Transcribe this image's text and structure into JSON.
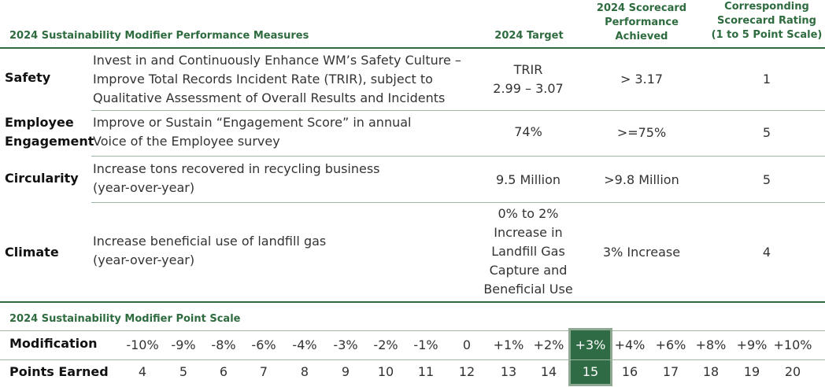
{
  "headers": {
    "measures": "2024 Sustainability Modifier Performance Measures",
    "target": "2024 Target",
    "performance": "2024 Scorecard Performance Achieved",
    "performance_lines": [
      "2024 Scorecard",
      "Performance",
      "Achieved"
    ],
    "rating": "Corresponding Scorecard Rating (1 to 5 Point Scale)",
    "rating_lines": [
      "Corresponding",
      "Scorecard Rating",
      "(1 to 5 Point Scale)"
    ]
  },
  "measures": [
    {
      "category_lines": [
        "Safety"
      ],
      "description_lines": [
        "Invest in and Continuously Enhance WM’s Safety Culture –",
        "Improve Total Records Incident Rate (TRIR), subject to",
        "Qualitative Assessment of Overall Results and Incidents"
      ],
      "target_lines": [
        "TRIR",
        "2.99 – 3.07"
      ],
      "performance": "> 3.17",
      "rating": "1"
    },
    {
      "category_lines": [
        "Employee",
        "Engagement"
      ],
      "description_lines": [
        "Improve or Sustain “Engagement Score” in annual",
        "Voice of the Employee survey"
      ],
      "target_lines": [
        "74%"
      ],
      "performance": ">=75%",
      "rating": "5"
    },
    {
      "category_lines": [
        "Circularity"
      ],
      "description_lines": [
        "Increase tons recovered in recycling business",
        "(year-over-year)"
      ],
      "target_lines": [
        "9.5 Million"
      ],
      "performance": ">9.8 Million",
      "rating": "5"
    },
    {
      "category_lines": [
        "Climate"
      ],
      "description_lines": [
        "Increase beneficial use of landfill gas",
        "(year-over-year)"
      ],
      "target_lines": [
        "0% to 2%",
        "Increase in",
        "Landfill Gas",
        "Capture and",
        "Beneficial Use"
      ],
      "performance": "3% Increase",
      "rating": "4"
    }
  ],
  "point_scale": {
    "title": "2024 Sustainability Modifier Point Scale",
    "modification_label": "Modification",
    "points_label": "Points Earned",
    "modifications": [
      "-10%",
      "-9%",
      "-8%",
      "-6%",
      "-4%",
      "-3%",
      "-2%",
      "-1%",
      "0",
      "+1%",
      "+2%",
      "+3%",
      "+4%",
      "+6%",
      "+8%",
      "+9%",
      "+10%"
    ],
    "points": [
      "4",
      "5",
      "6",
      "7",
      "8",
      "9",
      "10",
      "11",
      "12",
      "13",
      "14",
      "15",
      "16",
      "17",
      "18",
      "19",
      "20"
    ],
    "highlighted_index": 11
  },
  "colors": {
    "header_green": "#2e6b3f",
    "highlight_fill": "#2f6b45",
    "highlight_border": "#8ea893"
  }
}
